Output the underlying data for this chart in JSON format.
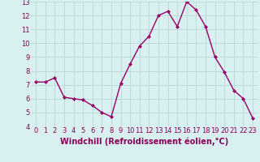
{
  "x": [
    0,
    1,
    2,
    3,
    4,
    5,
    6,
    7,
    8,
    9,
    10,
    11,
    12,
    13,
    14,
    15,
    16,
    17,
    18,
    19,
    20,
    21,
    22,
    23
  ],
  "y": [
    7.2,
    7.2,
    7.5,
    6.1,
    6.0,
    5.9,
    5.5,
    5.0,
    4.7,
    7.1,
    8.5,
    9.8,
    10.5,
    12.0,
    12.3,
    11.2,
    13.0,
    12.4,
    11.2,
    9.0,
    7.9,
    6.6,
    6.0,
    4.6
  ],
  "line_color": "#990066",
  "marker": "D",
  "marker_size": 2.0,
  "xlabel": "Windchill (Refroidissement éolien,°C)",
  "xlabel_fontsize": 7,
  "bg_color": "#d8f0f0",
  "grid_color": "#b8d8d8",
  "tick_label_color": "#880055",
  "axis_label_color": "#880055",
  "ylim": [
    4,
    13
  ],
  "xlim": [
    -0.5,
    23.5
  ],
  "yticks": [
    4,
    5,
    6,
    7,
    8,
    9,
    10,
    11,
    12,
    13
  ],
  "xtick_labels": [
    "0",
    "1",
    "2",
    "3",
    "4",
    "5",
    "6",
    "7",
    "8",
    "9",
    "10",
    "11",
    "12",
    "13",
    "14",
    "15",
    "16",
    "17",
    "18",
    "19",
    "20",
    "21",
    "22",
    "23"
  ],
  "tick_fontsize": 6.0,
  "linewidth": 1.0
}
